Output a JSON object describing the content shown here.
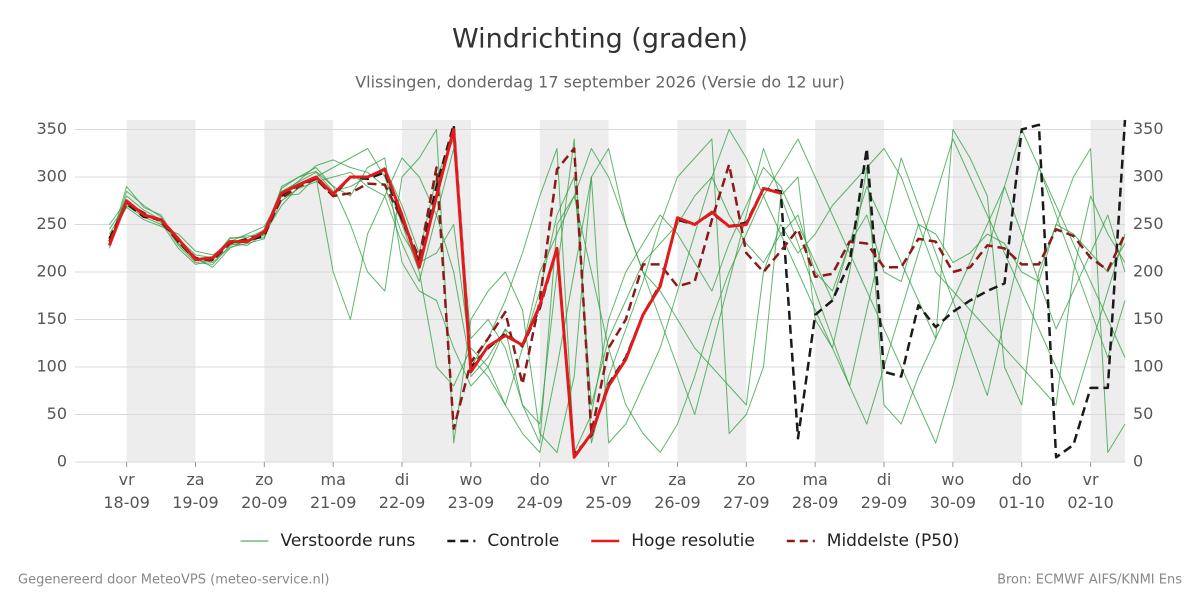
{
  "chart_data": {
    "type": "line",
    "title": "Windrichting (graden)",
    "subtitle": "Vlissingen, donderdag 17 september 2026 (Versie do 12 uur)",
    "footer_left": "Gegenereerd door MeteoVPS (meteo-service.nl)",
    "footer_right": "Bron: ECMWF AIFS/KNMI Ens",
    "x": [
      18,
      24,
      30,
      36,
      42,
      48,
      54,
      60,
      66,
      72,
      78,
      84,
      90,
      96,
      102,
      108,
      114,
      120,
      126,
      132,
      138,
      144,
      150,
      156,
      162,
      168,
      174,
      180,
      186,
      192,
      198,
      204,
      210,
      216,
      222,
      228,
      234,
      240,
      246,
      252,
      258,
      264,
      270,
      276,
      282,
      288,
      294,
      300,
      306,
      312,
      318,
      324,
      330,
      336,
      342,
      348,
      354,
      360,
      366,
      372
    ],
    "xlim": [
      6,
      372
    ],
    "xticks": [
      {
        "value": 24,
        "label": "vr 18-09"
      },
      {
        "value": 48,
        "label": "za 19-09"
      },
      {
        "value": 72,
        "label": "zo 20-09"
      },
      {
        "value": 96,
        "label": "ma 21-09"
      },
      {
        "value": 120,
        "label": "di 22-09"
      },
      {
        "value": 144,
        "label": "wo 23-09"
      },
      {
        "value": 168,
        "label": "do 24-09"
      },
      {
        "value": 192,
        "label": "vr 25-09"
      },
      {
        "value": 216,
        "label": "za 26-09"
      },
      {
        "value": 240,
        "label": "zo 27-09"
      },
      {
        "value": 264,
        "label": "ma 28-09"
      },
      {
        "value": 288,
        "label": "di 29-09"
      },
      {
        "value": 312,
        "label": "wo 30-09"
      },
      {
        "value": 336,
        "label": "do 01-10"
      },
      {
        "value": 360,
        "label": "vr 02-10"
      }
    ],
    "ylim": [
      0,
      360
    ],
    "yticks": [
      0,
      50,
      100,
      150,
      200,
      250,
      300,
      350
    ],
    "y2lim": [
      0,
      360
    ],
    "y2ticks": [
      0,
      50,
      100,
      150,
      200,
      250,
      300,
      350
    ],
    "grid": true,
    "ensemble": {
      "name": "Verstoorde runs",
      "color": "#2e9e3e",
      "members": [
        [
          230,
          280,
          265,
          255,
          228,
          210,
          208,
          228,
          232,
          245,
          285,
          295,
          305,
          285,
          290,
          300,
          310,
          270,
          220,
          300,
          340,
          90,
          110,
          140,
          120,
          180,
          260,
          300,
          60,
          130,
          170,
          210,
          230,
          250,
          280,
          300,
          260,
          230,
          210,
          240,
          260,
          200,
          180,
          230,
          260,
          200,
          190,
          250,
          240,
          210,
          220,
          240,
          230,
          200,
          190,
          250,
          240,
          220,
          200,
          230
        ],
        [
          240,
          270,
          258,
          250,
          235,
          218,
          215,
          235,
          238,
          238,
          275,
          288,
          295,
          300,
          305,
          290,
          280,
          230,
          190,
          260,
          330,
          130,
          150,
          120,
          60,
          40,
          200,
          340,
          20,
          90,
          140,
          190,
          250,
          300,
          320,
          340,
          30,
          50,
          100,
          280,
          300,
          150,
          120,
          200,
          310,
          60,
          40,
          90,
          130,
          350,
          320,
          280,
          100,
          60,
          200,
          250,
          300,
          330,
          10,
          40
        ],
        [
          225,
          285,
          270,
          258,
          230,
          212,
          210,
          226,
          230,
          235,
          290,
          300,
          310,
          290,
          250,
          200,
          180,
          300,
          320,
          350,
          20,
          150,
          180,
          200,
          160,
          30,
          10,
          90,
          300,
          330,
          250,
          200,
          180,
          150,
          120,
          100,
          80,
          60,
          200,
          250,
          220,
          240,
          270,
          290,
          310,
          330,
          300,
          250,
          200,
          180,
          160,
          140,
          120,
          100,
          80,
          60,
          200,
          280,
          240,
          210
        ],
        [
          250,
          275,
          262,
          252,
          225,
          208,
          212,
          232,
          240,
          248,
          280,
          282,
          300,
          310,
          320,
          330,
          300,
          250,
          200,
          100,
          80,
          120,
          100,
          140,
          60,
          20,
          250,
          280,
          200,
          120,
          60,
          30,
          10,
          40,
          90,
          150,
          200,
          240,
          280,
          310,
          340,
          300,
          260,
          220,
          180,
          140,
          100,
          60,
          20,
          80,
          150,
          220,
          290,
          350,
          310,
          270,
          230,
          190,
          150,
          110
        ],
        [
          235,
          268,
          255,
          248,
          240,
          222,
          218,
          230,
          228,
          240,
          270,
          290,
          300,
          200,
          150,
          240,
          280,
          320,
          300,
          260,
          200,
          100,
          130,
          170,
          220,
          280,
          330,
          10,
          50,
          150,
          200,
          230,
          260,
          240,
          210,
          180,
          230,
          270,
          310,
          290,
          250,
          210,
          170,
          230,
          290,
          250,
          210,
          170,
          130,
          170,
          210,
          250,
          290,
          240,
          190,
          140,
          180,
          220,
          260,
          200
        ],
        [
          228,
          290,
          268,
          260,
          230,
          215,
          205,
          225,
          234,
          236,
          282,
          296,
          312,
          318,
          310,
          305,
          290,
          240,
          210,
          220,
          250,
          110,
          90,
          60,
          30,
          10,
          100,
          200,
          300,
          20,
          40,
          80,
          120,
          180,
          240,
          300,
          350,
          320,
          280,
          240,
          200,
          160,
          120,
          80,
          40,
          100,
          160,
          220,
          280,
          340,
          300,
          260,
          220,
          180,
          140,
          100,
          60,
          120,
          180,
          240
        ],
        [
          245,
          272,
          260,
          256,
          236,
          212,
          214,
          236,
          236,
          244,
          288,
          300,
          306,
          290,
          280,
          310,
          320,
          210,
          180,
          170,
          120,
          80,
          100,
          60,
          120,
          200,
          240,
          280,
          330,
          300,
          250,
          200,
          150,
          100,
          50,
          120,
          190,
          260,
          330,
          280,
          230,
          180,
          130,
          80,
          160,
          240,
          320,
          270,
          220,
          170,
          120,
          70,
          150,
          230,
          310,
          260,
          210,
          160,
          110,
          170
        ]
      ]
    },
    "series": [
      {
        "name": "Controle",
        "color": "#1a1a1a",
        "dash": true,
        "values": [
          235,
          272,
          258,
          255,
          232,
          213,
          213,
          232,
          233,
          238,
          280,
          292,
          298,
          280,
          300,
          298,
          305,
          255,
          210,
          290,
          355,
          100,
          120,
          135,
          122,
          162,
          225,
          8,
          28,
          82,
          110,
          155,
          187,
          255,
          250,
          262,
          248,
          252,
          288,
          285,
          25,
          155,
          170,
          210,
          330,
          95,
          90,
          165,
          142,
          158,
          170,
          180,
          188,
          350,
          355,
          5,
          18,
          78,
          78,
          360
        ]
      },
      {
        "name": "Hoge resolutie",
        "color": "#e31a1c",
        "dash": false,
        "values": [
          228,
          275,
          260,
          255,
          235,
          213,
          215,
          232,
          232,
          242,
          283,
          292,
          300,
          282,
          300,
          300,
          308,
          260,
          205,
          280,
          350,
          95,
          122,
          133,
          123,
          165,
          225,
          5,
          30,
          80,
          108,
          155,
          185,
          257,
          250,
          263,
          248,
          250,
          288,
          283,
          null,
          null,
          null,
          null,
          null,
          null,
          null,
          null,
          null,
          null,
          null,
          null,
          null,
          null,
          null,
          null,
          null,
          null,
          null,
          null
        ]
      },
      {
        "name": "Middelste (P50)",
        "color": "#8b1a1a",
        "dash": true,
        "values": [
          232,
          273,
          262,
          253,
          232,
          215,
          212,
          230,
          235,
          240,
          278,
          290,
          298,
          280,
          283,
          293,
          292,
          255,
          215,
          310,
          35,
          105,
          130,
          158,
          82,
          170,
          308,
          330,
          30,
          120,
          150,
          208,
          208,
          185,
          190,
          255,
          313,
          220,
          200,
          222,
          245,
          195,
          198,
          232,
          230,
          205,
          205,
          235,
          232,
          200,
          205,
          228,
          225,
          208,
          208,
          245,
          238,
          215,
          202,
          240
        ]
      }
    ]
  }
}
